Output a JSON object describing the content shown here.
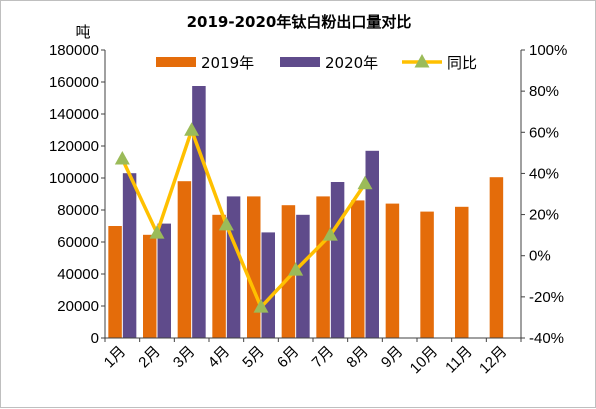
{
  "chart_data": {
    "type": "bar",
    "title": "2019-2020年钛白粉出口量对比",
    "y_unit": "吨",
    "categories": [
      "1月",
      "2月",
      "3月",
      "4月",
      "5月",
      "6月",
      "7月",
      "8月",
      "9月",
      "10月",
      "11月",
      "12月"
    ],
    "series": [
      {
        "name": "2019年",
        "kind": "bar",
        "axis": "left",
        "color": "#e46c0a",
        "values": [
          70000,
          64500,
          98000,
          77000,
          88500,
          83000,
          88500,
          86000,
          84000,
          79000,
          82000,
          100500
        ]
      },
      {
        "name": "2020年",
        "kind": "bar",
        "axis": "left",
        "color": "#5f4b8b",
        "values": [
          103000,
          71500,
          157500,
          88500,
          66000,
          77000,
          97500,
          117000,
          null,
          null,
          null,
          null
        ]
      },
      {
        "name": "同比",
        "kind": "line",
        "axis": "right",
        "color": "#ffc000",
        "marker_color": "#9bbb59",
        "values": [
          47,
          11,
          61,
          15,
          -25,
          -7,
          10,
          35,
          null,
          null,
          null,
          null
        ]
      }
    ],
    "y_left": {
      "min": 0,
      "max": 180000,
      "step": 20000,
      "tick_labels": [
        "0",
        "20000",
        "40000",
        "60000",
        "80000",
        "100000",
        "120000",
        "140000",
        "160000",
        "180000"
      ]
    },
    "y_right": {
      "min": -40,
      "max": 100,
      "step": 20,
      "tick_labels": [
        "-40%",
        "-20%",
        "0%",
        "20%",
        "40%",
        "60%",
        "80%",
        "100%"
      ]
    },
    "legend_position": "top",
    "grid": false
  }
}
